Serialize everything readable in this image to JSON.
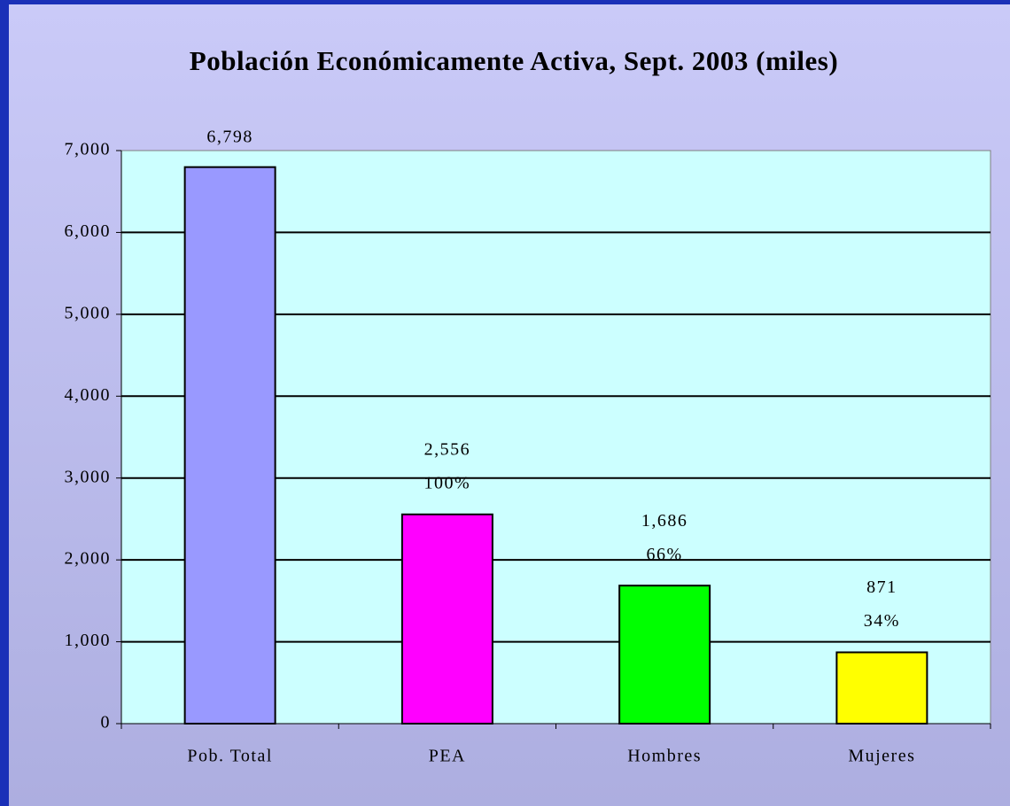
{
  "chart_data": {
    "type": "bar",
    "title": "Población Económicamente Activa, Sept. 2003 (miles)",
    "categories": [
      "Pob. Total",
      "PEA",
      "Hombres",
      "Mujeres"
    ],
    "values": [
      6798,
      2556,
      1686,
      871
    ],
    "value_labels": [
      "6,798",
      "2,556",
      "1,686",
      "871"
    ],
    "percent_labels": [
      null,
      "100%",
      "66%",
      "34%"
    ],
    "colors": [
      "#9999ff",
      "#ff00ff",
      "#00ff00",
      "#ffff00"
    ],
    "ylim": [
      0,
      7000
    ],
    "yticks": [
      0,
      {
        "value": 1000,
        "label": "1,000"
      },
      {
        "value": 2000,
        "label": "2,000"
      },
      {
        "value": 3000,
        "label": "3,000"
      },
      {
        "value": 4000,
        "label": "4,000"
      },
      {
        "value": 5000,
        "label": "5,000"
      },
      {
        "value": 6000,
        "label": "6,000"
      },
      {
        "value": 7000,
        "label": "7,000"
      }
    ],
    "grid": true
  }
}
